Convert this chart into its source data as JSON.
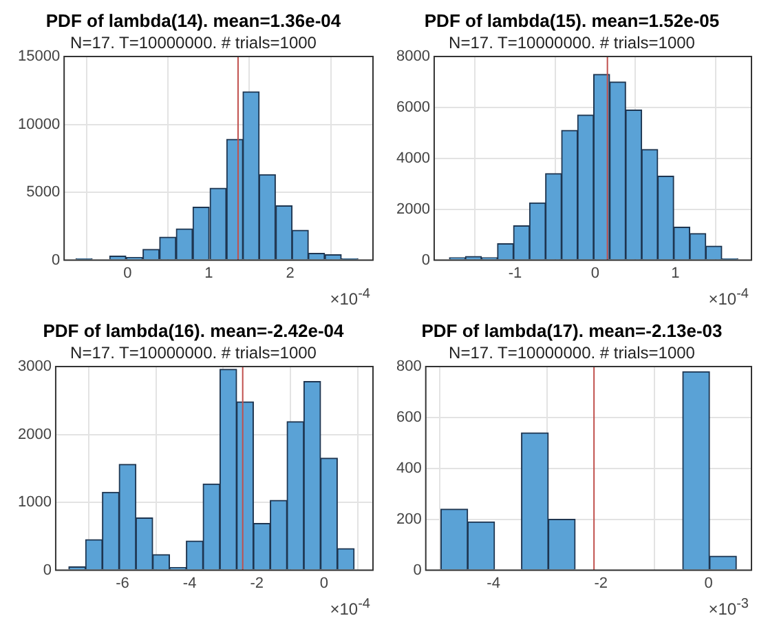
{
  "chart_data": [
    {
      "type": "histogram",
      "title": "PDF of lambda(14). mean=1.36e-04",
      "subtitle": "N=17. T=10000000. # trials=1000",
      "xlabel": "×10$^{-4}$",
      "bins": [
        -0.64,
        -0.43,
        -0.22,
        -0.02,
        0.19,
        0.39,
        0.6,
        0.8,
        1.01,
        1.22,
        1.42,
        1.62,
        1.82,
        2.03,
        2.22,
        2.43,
        2.63,
        2.84
      ],
      "values": [
        100,
        0,
        300,
        200,
        800,
        1700,
        2300,
        3900,
        5300,
        8900,
        12400,
        6300,
        4000,
        2200,
        500,
        400,
        100
      ],
      "color": "#5aa2d6",
      "xlim": [
        -0.78,
        3.02
      ],
      "xticks": [
        0,
        1,
        2
      ],
      "ylim": [
        0,
        15000
      ],
      "yticks": [
        0,
        5000,
        10000,
        15000
      ],
      "grid": true,
      "ref_lines": [
        {
          "axis": "x",
          "value": 1.36,
          "color": "#c0504d"
        }
      ]
    },
    {
      "type": "histogram",
      "title": "PDF of lambda(15). mean=1.52e-05",
      "subtitle": "N=17. T=10000000. # trials=1000",
      "xlabel": "×10$^{-4}$",
      "bins": [
        -1.82,
        -1.62,
        -1.42,
        -1.22,
        -1.02,
        -0.82,
        -0.62,
        -0.42,
        -0.22,
        -0.02,
        0.18,
        0.38,
        0.58,
        0.78,
        0.98,
        1.18,
        1.38,
        1.58,
        1.78
      ],
      "values": [
        100,
        150,
        100,
        650,
        1350,
        2250,
        3400,
        5100,
        5700,
        7300,
        7000,
        5900,
        4350,
        3300,
        1300,
        1050,
        550,
        50
      ],
      "color": "#5aa2d6",
      "xlim": [
        -2.01,
        1.95
      ],
      "xticks": [
        -1,
        0,
        1
      ],
      "ylim": [
        0,
        8000
      ],
      "yticks": [
        0,
        2000,
        4000,
        6000,
        8000
      ],
      "grid": true,
      "ref_lines": [
        {
          "axis": "x",
          "value": 0.152,
          "color": "#c0504d"
        }
      ]
    },
    {
      "type": "histogram",
      "title": "PDF of lambda(16). mean=-2.42e-04",
      "subtitle": "N=17. T=10000000. # trials=1000",
      "xlabel": "×10$^{-4}$",
      "bins": [
        -7.6,
        -7.1,
        -6.6,
        -6.1,
        -5.6,
        -5.1,
        -4.6,
        -4.1,
        -3.6,
        -3.1,
        -2.6,
        -2.1,
        -1.6,
        -1.1,
        -0.6,
        -0.1,
        0.4,
        0.9
      ],
      "values": [
        50,
        450,
        1150,
        1560,
        770,
        230,
        40,
        430,
        1270,
        2960,
        2480,
        690,
        1030,
        2190,
        2780,
        1650,
        320
      ],
      "color": "#5aa2d6",
      "xlim": [
        -7.99,
        1.46
      ],
      "xticks": [
        -6,
        -4,
        -2,
        0
      ],
      "ylim": [
        0,
        3000
      ],
      "yticks": [
        0,
        1000,
        2000,
        3000
      ],
      "grid": true,
      "ref_lines": [
        {
          "axis": "x",
          "value": -2.42,
          "color": "#c0504d"
        }
      ]
    },
    {
      "type": "histogram",
      "title": "PDF of lambda(17). mean=-2.13e-03",
      "subtitle": "N=17. T=10000000. # trials=1000",
      "xlabel": "×10$^{-3}$",
      "bins": [
        -4.98,
        -4.48,
        -3.98,
        -3.48,
        -2.98,
        -2.48,
        -1.98,
        -1.48,
        -0.98,
        -0.48,
        0.02,
        0.52
      ],
      "values": [
        240,
        190,
        0,
        540,
        200,
        0,
        0,
        0,
        0,
        780,
        55
      ],
      "color": "#5aa2d6",
      "xlim": [
        -5.26,
        0.8
      ],
      "xticks": [
        -4,
        -2,
        0
      ],
      "ylim": [
        0,
        800
      ],
      "yticks": [
        0,
        200,
        400,
        600,
        800
      ],
      "grid": true,
      "ref_lines": [
        {
          "axis": "x",
          "value": -2.13,
          "color": "#c0504d"
        }
      ]
    }
  ]
}
